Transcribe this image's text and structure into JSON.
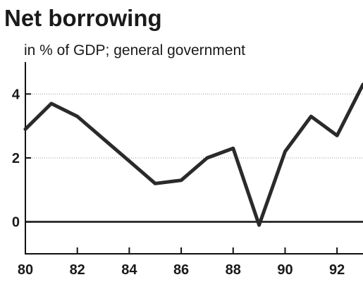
{
  "chart_data": {
    "type": "line",
    "title": "Net borrowing",
    "subtitle": "in % of GDP; general government",
    "xlabel": "",
    "ylabel": "",
    "x": [
      1980,
      1981,
      1982,
      1983,
      1984,
      1985,
      1986,
      1987,
      1988,
      1989,
      1990,
      1991,
      1992,
      1993
    ],
    "series": [
      {
        "values": [
          2.9,
          3.7,
          3.3,
          2.6,
          1.9,
          1.2,
          1.3,
          2.0,
          2.3,
          -0.1,
          2.2,
          3.3,
          2.7,
          4.3
        ]
      }
    ],
    "xlim": [
      1980,
      1993
    ],
    "ylim": [
      -1,
      5
    ],
    "x_ticks": [
      1980,
      1982,
      1984,
      1986,
      1988,
      1990,
      1992
    ],
    "x_tick_labels": [
      "80",
      "82",
      "84",
      "86",
      "88",
      "90",
      "92"
    ],
    "y_ticks": [
      0,
      2,
      4
    ],
    "y_tick_labels": [
      "0",
      "2",
      "4"
    ],
    "grid": true,
    "colors": {
      "line": "#2a2a2a"
    }
  }
}
